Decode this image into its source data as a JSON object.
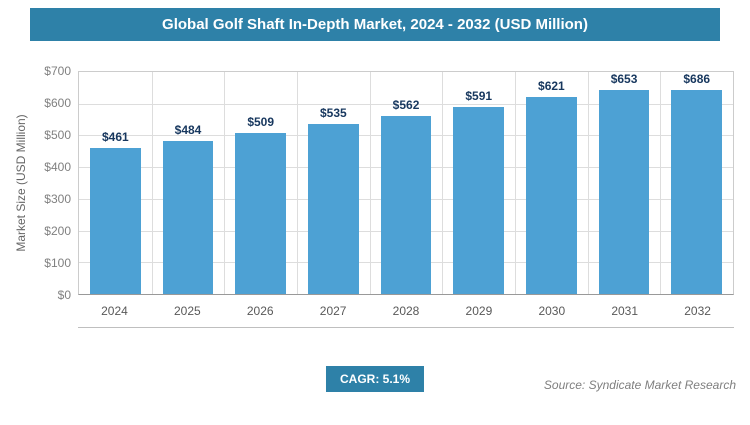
{
  "header": {
    "title": "Global Golf Shaft In-Depth Market, 2024 - 2032 (USD Million)"
  },
  "chart_data": {
    "type": "bar",
    "title": "Global Golf Shaft In-Depth Market, 2024 - 2032 (USD Million)",
    "categories": [
      "2024",
      "2025",
      "2026",
      "2027",
      "2028",
      "2029",
      "2030",
      "2031",
      "2032"
    ],
    "values": [
      461,
      484,
      509,
      535,
      562,
      591,
      621,
      653,
      686
    ],
    "value_labels": [
      "$461",
      "$484",
      "$509",
      "$535",
      "$562",
      "$591",
      "$621",
      "$653",
      "$686"
    ],
    "xlabel": "",
    "ylabel": "Market Size (USD Million)",
    "ylim": [
      0,
      700
    ],
    "ytick_step": 100,
    "ytick_labels": [
      "$0",
      "$100",
      "$200",
      "$300",
      "$400",
      "$500",
      "$600",
      "$700"
    ],
    "grid": true,
    "legend": false
  },
  "footer": {
    "cagr_label": "CAGR: 5.1%",
    "source": "Source: Syndicate Market Research"
  },
  "colors": {
    "header_bg": "#2e81a8",
    "cagr_bg": "#2e81a8",
    "bar": "#4da1d4",
    "value_label": "#17375e",
    "grid": "#dddddd",
    "axis_text": "#808080"
  }
}
